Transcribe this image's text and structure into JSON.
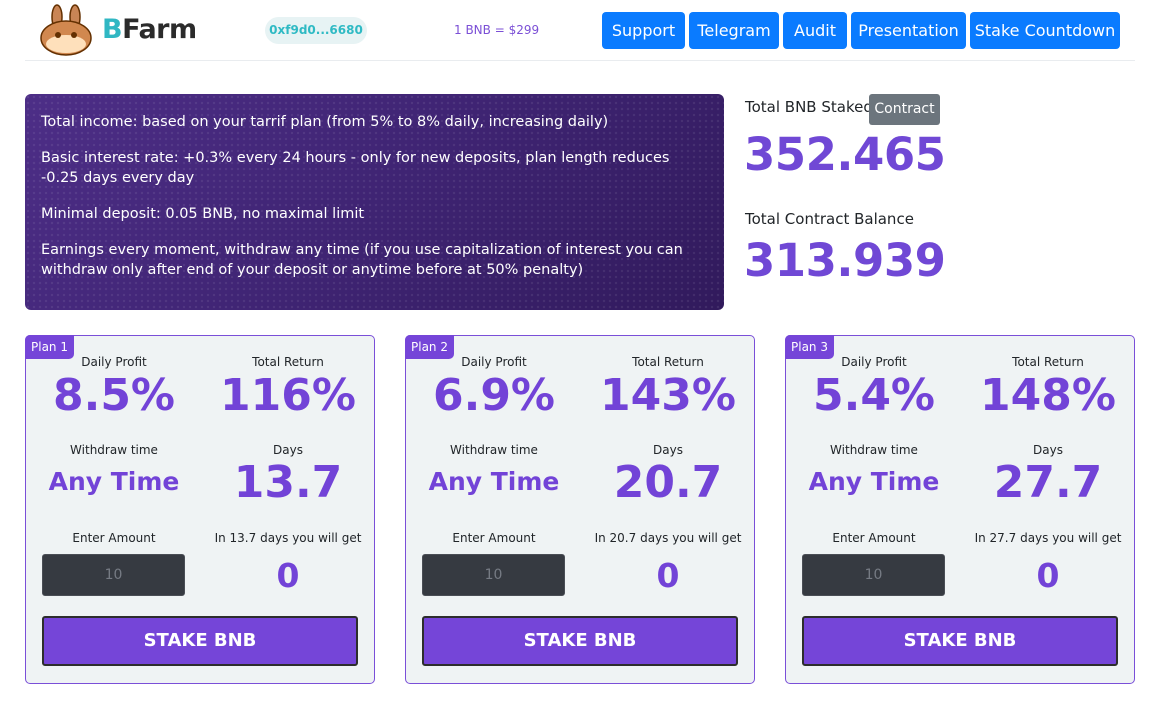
{
  "header": {
    "brand_prefix": "B",
    "brand_suffix": "Farm",
    "wallet_address": "0xf9d0...6680",
    "price": "1 BNB = $299",
    "nav": [
      "Support",
      "Telegram",
      "Audit",
      "Presentation",
      "Stake Countdown"
    ]
  },
  "info": {
    "lines": [
      "Total income: based on your tarrif plan (from 5% to 8% daily, increasing daily)",
      "Basic interest rate: +0.3% every 24 hours - only for new deposits, plan length reduces -0.25 days every day",
      "Minimal deposit: 0.05 BNB, no maximal limit",
      "Earnings every moment, withdraw any time (if you use capitalization of interest you can withdraw only after end of your deposit or anytime before at 50% penalty)"
    ]
  },
  "stats": {
    "staked_label": "Total BNB Staked",
    "contract_label": "Contract",
    "staked_value": "352.465",
    "balance_label": "Total Contract Balance",
    "balance_value": "313.939"
  },
  "plans": [
    {
      "badge": "Plan 1",
      "daily_label": "Daily Profit",
      "daily": "8.5%",
      "total_label": "Total Return",
      "total": "116%",
      "withdraw_label": "Withdraw time",
      "withdraw": "Any Time",
      "days_label": "Days",
      "days": "13.7",
      "amount_label": "Enter Amount",
      "amount_placeholder": "10",
      "get_label": "In 13.7 days you will get",
      "get": "0",
      "button": "STAKE BNB"
    },
    {
      "badge": "Plan 2",
      "daily_label": "Daily Profit",
      "daily": "6.9%",
      "total_label": "Total Return",
      "total": "143%",
      "withdraw_label": "Withdraw time",
      "withdraw": "Any Time",
      "days_label": "Days",
      "days": "20.7",
      "amount_label": "Enter Amount",
      "amount_placeholder": "10",
      "get_label": "In 20.7 days you will get",
      "get": "0",
      "button": "STAKE BNB"
    },
    {
      "badge": "Plan 3",
      "daily_label": "Daily Profit",
      "daily": "5.4%",
      "total_label": "Total Return",
      "total": "148%",
      "withdraw_label": "Withdraw time",
      "withdraw": "Any Time",
      "days_label": "Days",
      "days": "27.7",
      "amount_label": "Enter Amount",
      "amount_placeholder": "10",
      "get_label": "In 27.7 days you will get",
      "get": "0",
      "button": "STAKE BNB"
    }
  ],
  "colors": {
    "accent": "#7545d8",
    "nav_blue": "#0a7bff",
    "teal": "#30b7c3"
  }
}
